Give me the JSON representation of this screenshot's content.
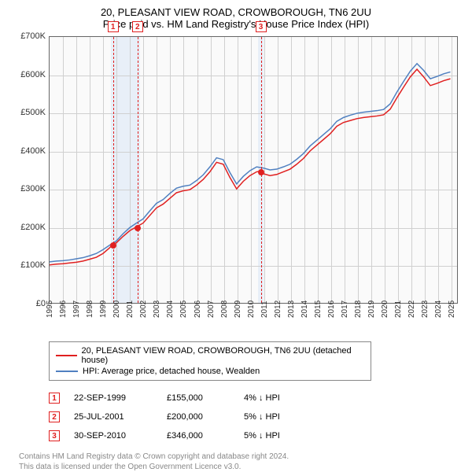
{
  "title": "20, PLEASANT VIEW ROAD, CROWBOROUGH, TN6 2UU",
  "subtitle": "Price paid vs. HM Land Registry's House Price Index (HPI)",
  "chart": {
    "type": "line",
    "background_color": "#fafafa",
    "grid_color": "#d0d0d0",
    "border_color": "#666666",
    "band_color": "#e8eff8",
    "x_range": [
      1995,
      2025.5
    ],
    "y_range": [
      0,
      700000
    ],
    "y_ticks": [
      0,
      100000,
      200000,
      300000,
      400000,
      500000,
      600000,
      700000
    ],
    "y_tick_labels": [
      "£0",
      "£100K",
      "£200K",
      "£300K",
      "£400K",
      "£500K",
      "£600K",
      "£700K"
    ],
    "x_ticks": [
      1995,
      1996,
      1997,
      1998,
      1999,
      2000,
      2001,
      2002,
      2003,
      2004,
      2005,
      2006,
      2007,
      2008,
      2009,
      2010,
      2011,
      2012,
      2013,
      2014,
      2015,
      2016,
      2017,
      2018,
      2019,
      2020,
      2021,
      2022,
      2023,
      2024,
      2025
    ],
    "label_fontsize": 11,
    "series": [
      {
        "name": "20, PLEASANT VIEW ROAD, CROWBOROUGH, TN6 2UU (detached house)",
        "color": "#e02020",
        "line_width": 1.5,
        "data": [
          [
            1995,
            100000
          ],
          [
            1995.5,
            102000
          ],
          [
            1996,
            103000
          ],
          [
            1996.5,
            105000
          ],
          [
            1997,
            107000
          ],
          [
            1997.5,
            110000
          ],
          [
            1998,
            115000
          ],
          [
            1998.5,
            120000
          ],
          [
            1999,
            130000
          ],
          [
            1999.5,
            145000
          ],
          [
            1999.75,
            155000
          ],
          [
            2000,
            158000
          ],
          [
            2000.5,
            175000
          ],
          [
            2001,
            190000
          ],
          [
            2001.5,
            200000
          ],
          [
            2002,
            210000
          ],
          [
            2002.5,
            230000
          ],
          [
            2003,
            250000
          ],
          [
            2003.5,
            260000
          ],
          [
            2004,
            275000
          ],
          [
            2004.5,
            290000
          ],
          [
            2005,
            295000
          ],
          [
            2005.5,
            298000
          ],
          [
            2006,
            310000
          ],
          [
            2006.5,
            325000
          ],
          [
            2007,
            345000
          ],
          [
            2007.5,
            370000
          ],
          [
            2008,
            365000
          ],
          [
            2008.5,
            330000
          ],
          [
            2009,
            300000
          ],
          [
            2009.5,
            320000
          ],
          [
            2010,
            335000
          ],
          [
            2010.5,
            345000
          ],
          [
            2010.75,
            346000
          ],
          [
            2011,
            340000
          ],
          [
            2011.5,
            335000
          ],
          [
            2012,
            338000
          ],
          [
            2012.5,
            345000
          ],
          [
            2013,
            352000
          ],
          [
            2013.5,
            365000
          ],
          [
            2014,
            380000
          ],
          [
            2014.5,
            400000
          ],
          [
            2015,
            415000
          ],
          [
            2015.5,
            430000
          ],
          [
            2016,
            445000
          ],
          [
            2016.5,
            465000
          ],
          [
            2017,
            475000
          ],
          [
            2017.5,
            480000
          ],
          [
            2018,
            485000
          ],
          [
            2018.5,
            488000
          ],
          [
            2019,
            490000
          ],
          [
            2019.5,
            492000
          ],
          [
            2020,
            495000
          ],
          [
            2020.5,
            510000
          ],
          [
            2021,
            540000
          ],
          [
            2021.5,
            568000
          ],
          [
            2022,
            595000
          ],
          [
            2022.5,
            615000
          ],
          [
            2023,
            595000
          ],
          [
            2023.5,
            572000
          ],
          [
            2024,
            578000
          ],
          [
            2024.5,
            585000
          ],
          [
            2025,
            590000
          ]
        ]
      },
      {
        "name": "HPI: Average price, detached house, Wealden",
        "color": "#5080c0",
        "line_width": 1.5,
        "data": [
          [
            1995,
            108000
          ],
          [
            1995.5,
            110000
          ],
          [
            1996,
            111000
          ],
          [
            1996.5,
            113000
          ],
          [
            1997,
            116000
          ],
          [
            1997.5,
            119000
          ],
          [
            1998,
            124000
          ],
          [
            1998.5,
            130000
          ],
          [
            1999,
            140000
          ],
          [
            1999.5,
            152000
          ],
          [
            2000,
            163000
          ],
          [
            2000.5,
            182000
          ],
          [
            2001,
            198000
          ],
          [
            2001.5,
            210000
          ],
          [
            2002,
            221000
          ],
          [
            2002.5,
            242000
          ],
          [
            2003,
            262000
          ],
          [
            2003.5,
            272000
          ],
          [
            2004,
            288000
          ],
          [
            2004.5,
            302000
          ],
          [
            2005,
            307000
          ],
          [
            2005.5,
            310000
          ],
          [
            2006,
            322000
          ],
          [
            2006.5,
            337000
          ],
          [
            2007,
            358000
          ],
          [
            2007.5,
            382000
          ],
          [
            2008,
            377000
          ],
          [
            2008.5,
            343000
          ],
          [
            2009,
            313000
          ],
          [
            2009.5,
            333000
          ],
          [
            2010,
            348000
          ],
          [
            2010.5,
            358000
          ],
          [
            2011,
            355000
          ],
          [
            2011.5,
            350000
          ],
          [
            2012,
            352000
          ],
          [
            2012.5,
            358000
          ],
          [
            2013,
            365000
          ],
          [
            2013.5,
            378000
          ],
          [
            2014,
            393000
          ],
          [
            2014.5,
            413000
          ],
          [
            2015,
            428000
          ],
          [
            2015.5,
            443000
          ],
          [
            2016,
            458000
          ],
          [
            2016.5,
            478000
          ],
          [
            2017,
            488000
          ],
          [
            2017.5,
            494000
          ],
          [
            2018,
            499000
          ],
          [
            2018.5,
            502000
          ],
          [
            2019,
            504000
          ],
          [
            2019.5,
            506000
          ],
          [
            2020,
            509000
          ],
          [
            2020.5,
            524000
          ],
          [
            2021,
            555000
          ],
          [
            2021.5,
            583000
          ],
          [
            2022,
            610000
          ],
          [
            2022.5,
            630000
          ],
          [
            2023,
            612000
          ],
          [
            2023.5,
            590000
          ],
          [
            2024,
            596000
          ],
          [
            2024.5,
            603000
          ],
          [
            2025,
            608000
          ]
        ]
      }
    ],
    "markers": [
      {
        "n": "1",
        "x": 1999.73,
        "y": 155000
      },
      {
        "n": "2",
        "x": 2001.56,
        "y": 200000
      },
      {
        "n": "3",
        "x": 2010.75,
        "y": 346000
      }
    ],
    "bands": [
      [
        1999.55,
        2001.75
      ],
      [
        2010.55,
        2010.95
      ]
    ]
  },
  "legend": {
    "items": [
      {
        "color": "#e02020",
        "label": "20, PLEASANT VIEW ROAD, CROWBOROUGH, TN6 2UU (detached house)"
      },
      {
        "color": "#5080c0",
        "label": "HPI: Average price, detached house, Wealden"
      }
    ]
  },
  "events": [
    {
      "n": "1",
      "date": "22-SEP-1999",
      "price": "£155,000",
      "diff": "4% ↓ HPI"
    },
    {
      "n": "2",
      "date": "25-JUL-2001",
      "price": "£200,000",
      "diff": "5% ↓ HPI"
    },
    {
      "n": "3",
      "date": "30-SEP-2010",
      "price": "£346,000",
      "diff": "5% ↓ HPI"
    }
  ],
  "footer1": "Contains HM Land Registry data © Crown copyright and database right 2024.",
  "footer2": "This data is licensed under the Open Government Licence v3.0."
}
